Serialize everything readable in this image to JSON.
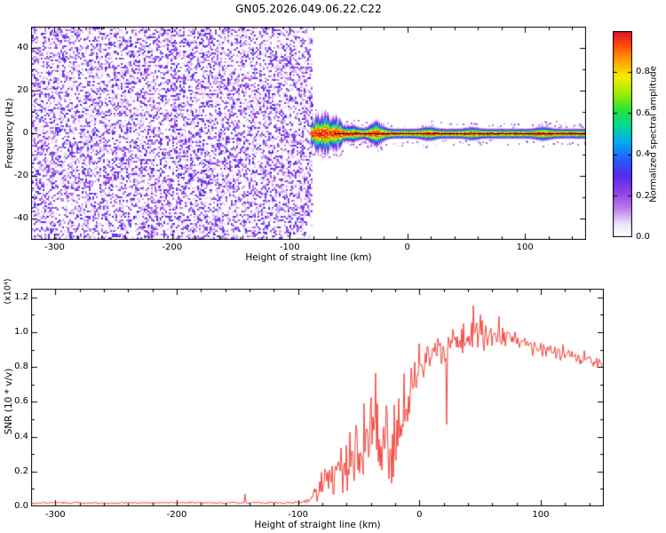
{
  "title": "GN05.2026.049.06.22.C22",
  "chart_data": [
    {
      "type": "heatmap",
      "id": "spectrogram",
      "title": "GN05.2026.049.06.22.C22",
      "xlabel": "Height of straight line (km)",
      "ylabel": "Frequency (Hz)",
      "xlim": [
        -320,
        152
      ],
      "ylim": [
        -50,
        50
      ],
      "xticks": [
        -300,
        -200,
        -100,
        0,
        100
      ],
      "xticklabels": [
        "-300",
        "-200",
        "-100",
        "0",
        "100"
      ],
      "yticks": [
        -40,
        -20,
        0,
        20,
        40
      ],
      "yticklabels": [
        "-40",
        "-20",
        "0",
        "20",
        "40"
      ],
      "x_minor_step": 20,
      "y_minor_step": 10,
      "grid": false,
      "noise_region": {
        "x_start": -320,
        "x_end": -82,
        "amplitude_min": 0.0,
        "amplitude_max": 0.3
      },
      "signal_band": {
        "x_start": -82,
        "x_end": 152,
        "center_frequency_hz": 0,
        "peak_amplitude": 1.0,
        "base_halfwidth_hz": 1.1,
        "bulges": [
          {
            "x": -74,
            "halfwidth_hz": 3.2
          },
          {
            "x": -62,
            "halfwidth_hz": 2.4
          },
          {
            "x": -48,
            "halfwidth_hz": 1.9
          },
          {
            "x": -27,
            "halfwidth_hz": 2.6
          },
          {
            "x": 18,
            "halfwidth_hz": 1.6
          },
          {
            "x": 55,
            "halfwidth_hz": 1.5
          },
          {
            "x": 115,
            "halfwidth_hz": 1.6
          }
        ]
      },
      "colormap_stops": [
        [
          0.0,
          255,
          255,
          255
        ],
        [
          0.06,
          238,
          229,
          248
        ],
        [
          0.14,
          186,
          122,
          235
        ],
        [
          0.22,
          142,
          62,
          232
        ],
        [
          0.3,
          82,
          44,
          238
        ],
        [
          0.38,
          36,
          96,
          250
        ],
        [
          0.46,
          0,
          172,
          238
        ],
        [
          0.54,
          0,
          216,
          150
        ],
        [
          0.62,
          46,
          226,
          56
        ],
        [
          0.7,
          164,
          236,
          0
        ],
        [
          0.78,
          246,
          236,
          0
        ],
        [
          0.86,
          255,
          158,
          0
        ],
        [
          0.93,
          255,
          78,
          12
        ],
        [
          1.0,
          226,
          16,
          40
        ]
      ],
      "colorbar": {
        "label": "Normalized spectral amplitude",
        "range": [
          0,
          1
        ],
        "ticks": [
          0,
          0.2,
          0.4,
          0.6,
          0.8
        ],
        "ticklabels": [
          "0.0",
          "0.2",
          "0.4",
          "0.6",
          "0.8"
        ]
      }
    },
    {
      "type": "line",
      "id": "snr",
      "xlabel": "Height of straight line (km)",
      "ylabel": "SNR (10 * v/v)",
      "y_multiplier": "(x10⁴)",
      "xlim": [
        -320,
        152
      ],
      "ylim": [
        0,
        1.25
      ],
      "xticks": [
        -300,
        -200,
        -100,
        0,
        100
      ],
      "xticklabels": [
        "-300",
        "-200",
        "-100",
        "0",
        "100"
      ],
      "yticks": [
        0,
        0.2,
        0.4,
        0.6,
        0.8,
        1.0,
        1.2
      ],
      "yticklabels": [
        "0.0",
        "0.2",
        "0.4",
        "0.6",
        "0.8",
        "1.0",
        "1.2"
      ],
      "x_minor_step": 20,
      "y_minor_step": 0.1,
      "grid": false,
      "line_color": "#f03228",
      "envelope_comment": "control points: [height_km, mean_snr, noise_amplitude] in units of 1e4 v/v",
      "envelope": [
        [
          -320,
          0.02,
          0.006
        ],
        [
          -150,
          0.02,
          0.006
        ],
        [
          -100,
          0.022,
          0.008
        ],
        [
          -92,
          0.03,
          0.02
        ],
        [
          -84,
          0.08,
          0.07
        ],
        [
          -76,
          0.16,
          0.13
        ],
        [
          -68,
          0.2,
          0.16
        ],
        [
          -60,
          0.22,
          0.18
        ],
        [
          -52,
          0.3,
          0.22
        ],
        [
          -44,
          0.4,
          0.28
        ],
        [
          -36,
          0.45,
          0.3
        ],
        [
          -28,
          0.38,
          0.28
        ],
        [
          -22,
          0.28,
          0.22
        ],
        [
          -16,
          0.45,
          0.3
        ],
        [
          -10,
          0.62,
          0.28
        ],
        [
          -4,
          0.72,
          0.22
        ],
        [
          2,
          0.78,
          0.18
        ],
        [
          10,
          0.86,
          0.12
        ],
        [
          20,
          0.91,
          0.1
        ],
        [
          30,
          0.94,
          0.1
        ],
        [
          40,
          0.96,
          0.12
        ],
        [
          50,
          1.0,
          0.14
        ],
        [
          60,
          0.98,
          0.11
        ],
        [
          75,
          0.95,
          0.08
        ],
        [
          90,
          0.92,
          0.06
        ],
        [
          110,
          0.88,
          0.05
        ],
        [
          130,
          0.85,
          0.04
        ],
        [
          152,
          0.82,
          0.035
        ]
      ]
    }
  ]
}
